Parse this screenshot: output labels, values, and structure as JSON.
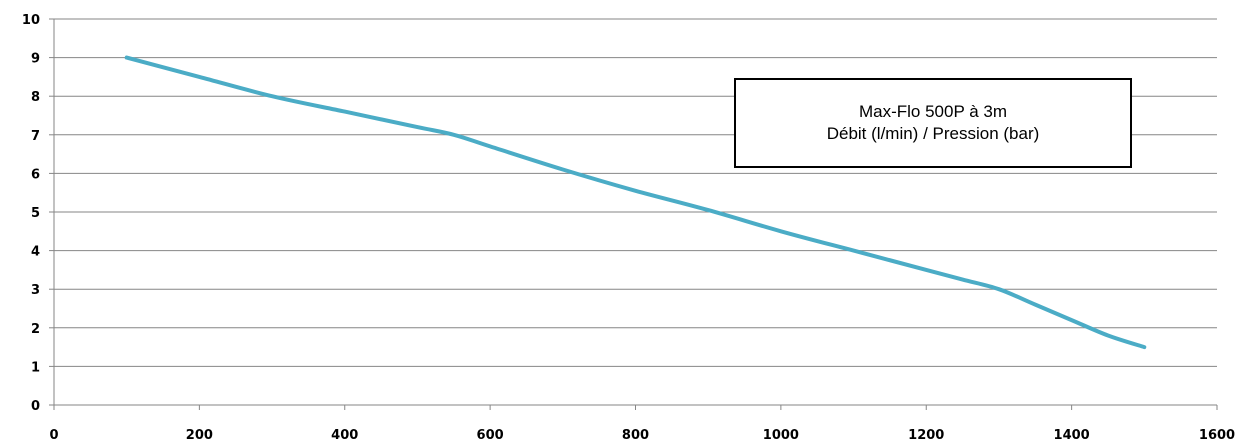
{
  "chart_data": {
    "type": "line",
    "title": "",
    "xlabel": "",
    "ylabel": "",
    "xlim": [
      0,
      1600
    ],
    "ylim": [
      0,
      10
    ],
    "x_ticks": [
      0,
      200,
      400,
      600,
      800,
      1000,
      1200,
      1400,
      1600
    ],
    "y_ticks": [
      0,
      1,
      2,
      3,
      4,
      5,
      6,
      7,
      8,
      9,
      10
    ],
    "grid": "horizontal",
    "legend": "none",
    "colors": {
      "series": "#4BACC6",
      "grid": "#868686",
      "axis": "#868686"
    },
    "annotation": {
      "line1": "Max-Flo 500P à 3m",
      "line2": "Débit (l/min) / Pression (bar)"
    },
    "series": [
      {
        "x": [
          100,
          200,
          300,
          400,
          500,
          550,
          600,
          700,
          800,
          900,
          1000,
          1100,
          1200,
          1250,
          1300,
          1350,
          1400,
          1450,
          1500
        ],
        "y": [
          9.0,
          8.5,
          8.0,
          7.6,
          7.2,
          7.0,
          6.7,
          6.1,
          5.55,
          5.05,
          4.5,
          4.0,
          3.5,
          3.25,
          3.0,
          2.6,
          2.2,
          1.8,
          1.5
        ]
      }
    ]
  }
}
